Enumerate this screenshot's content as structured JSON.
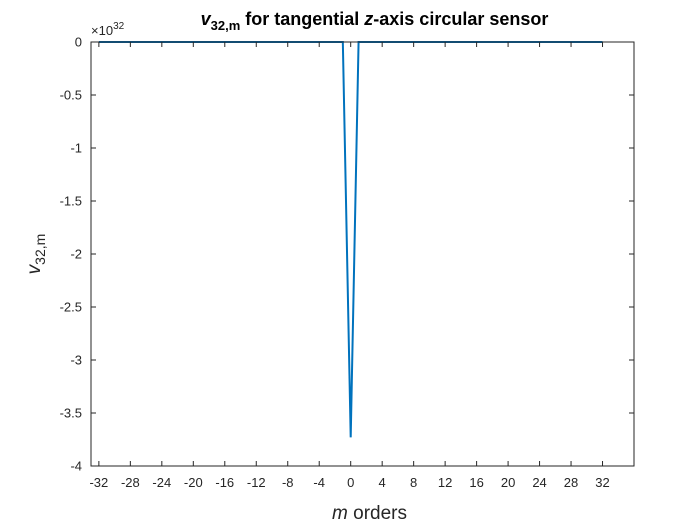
{
  "chart_data": {
    "type": "line",
    "title_parts": {
      "symbol": "v",
      "subscript": "32,m",
      "text_before_z": " for tangential ",
      "z": "z",
      "text_after_z": "-axis circular sensor"
    },
    "xlabel_parts": {
      "symbol": "m",
      "text": " orders"
    },
    "ylabel_parts": {
      "symbol": "v",
      "subscript": "32,m"
    },
    "y_exponent": {
      "base": "×10",
      "power": "32"
    },
    "xlim": [
      -33,
      36
    ],
    "ylim": [
      -4,
      0
    ],
    "x_ticks": [
      -32,
      -28,
      -24,
      -20,
      -16,
      -12,
      -8,
      -4,
      0,
      4,
      8,
      12,
      16,
      20,
      24,
      28,
      32
    ],
    "y_ticks": [
      0,
      -0.5,
      -1,
      -1.5,
      -2,
      -2.5,
      -3,
      -3.5,
      -4
    ],
    "y_tick_labels": [
      "0",
      "-0.5",
      "-1",
      "-1.5",
      "-2",
      "-2.5",
      "-3",
      "-3.5",
      "-4"
    ],
    "series": [
      {
        "color": "#0072BD",
        "x": [
          -32,
          -1,
          0,
          1,
          32
        ],
        "y": [
          0,
          0,
          -3.73,
          0,
          0
        ]
      }
    ],
    "grid": false,
    "box": true
  }
}
